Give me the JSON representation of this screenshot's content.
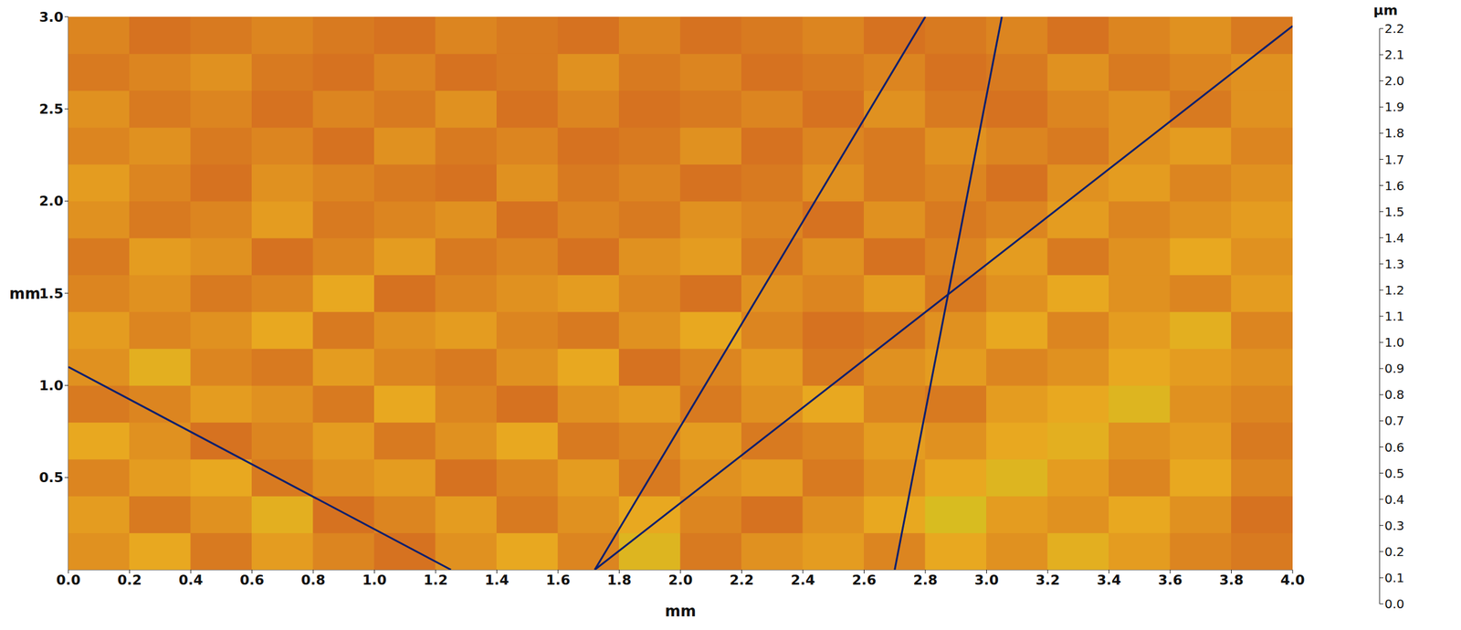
{
  "chart_data": {
    "type": "heatmap",
    "xlabel": "mm",
    "ylabel": "mm",
    "xlim": [
      0,
      4.0
    ],
    "xticks": [
      {
        "value": 0,
        "label": "0.0"
      },
      0.2,
      0.4,
      0.6,
      0.8,
      {
        "value": 1,
        "label": "1.0"
      },
      1.2,
      1.4,
      1.6,
      1.8,
      {
        "value": 2,
        "label": "2.0"
      },
      2.2,
      2.4,
      2.6,
      2.8,
      {
        "value": 3,
        "label": "3.0"
      },
      3.2,
      3.4,
      3.6,
      3.8,
      {
        "value": 4,
        "label": "4.0"
      }
    ],
    "ylim": [
      0,
      3.0
    ],
    "yticks": [
      0.5,
      {
        "value": 1,
        "label": "1.0"
      },
      1.5,
      {
        "value": 2,
        "label": "2.0"
      },
      2.5,
      {
        "value": 3,
        "label": "3.0"
      }
    ],
    "cells": {
      "x": [
        0.1,
        0.3,
        0.5,
        0.7,
        0.9,
        1.1,
        1.3,
        1.5,
        1.7,
        1.9,
        2.1,
        2.3,
        2.5,
        2.7,
        2.9,
        3.1,
        3.3,
        3.5,
        3.7,
        3.9
      ],
      "y": [
        0.1,
        0.3,
        0.5,
        0.7,
        0.9,
        1.1,
        1.3,
        1.5,
        1.7,
        1.9,
        2.1,
        2.3,
        2.5,
        2.7,
        2.9
      ],
      "values": [
        [
          1.78,
          1.76,
          1.8,
          1.77,
          1.79,
          1.81,
          1.78,
          1.76,
          1.79,
          1.74,
          1.8,
          1.78,
          1.77,
          1.79,
          1.76,
          1.78,
          1.75,
          1.77,
          1.79,
          1.8
        ],
        [
          1.77,
          1.8,
          1.78,
          1.75,
          1.81,
          1.79,
          1.77,
          1.8,
          1.78,
          1.76,
          1.79,
          1.81,
          1.78,
          1.76,
          1.73,
          1.77,
          1.78,
          1.76,
          1.78,
          1.81
        ],
        [
          1.79,
          1.77,
          1.76,
          1.8,
          1.78,
          1.77,
          1.81,
          1.79,
          1.77,
          1.8,
          1.78,
          1.77,
          1.8,
          1.78,
          1.76,
          1.74,
          1.77,
          1.79,
          1.76,
          1.79
        ],
        [
          1.76,
          1.78,
          1.81,
          1.79,
          1.77,
          1.8,
          1.78,
          1.76,
          1.8,
          1.79,
          1.77,
          1.8,
          1.79,
          1.77,
          1.78,
          1.76,
          1.75,
          1.78,
          1.77,
          1.8
        ],
        [
          1.8,
          1.79,
          1.77,
          1.78,
          1.8,
          1.76,
          1.79,
          1.81,
          1.78,
          1.77,
          1.8,
          1.78,
          1.76,
          1.79,
          1.8,
          1.77,
          1.76,
          1.74,
          1.78,
          1.79
        ],
        [
          1.78,
          1.75,
          1.79,
          1.8,
          1.77,
          1.79,
          1.8,
          1.78,
          1.76,
          1.81,
          1.79,
          1.77,
          1.8,
          1.78,
          1.77,
          1.79,
          1.78,
          1.76,
          1.77,
          1.78
        ],
        [
          1.77,
          1.79,
          1.78,
          1.76,
          1.8,
          1.78,
          1.77,
          1.79,
          1.8,
          1.78,
          1.76,
          1.79,
          1.81,
          1.8,
          1.78,
          1.76,
          1.79,
          1.77,
          1.75,
          1.79
        ],
        [
          1.79,
          1.78,
          1.8,
          1.79,
          1.76,
          1.81,
          1.79,
          1.78,
          1.77,
          1.79,
          1.81,
          1.78,
          1.79,
          1.77,
          1.8,
          1.78,
          1.76,
          1.78,
          1.79,
          1.77
        ],
        [
          1.8,
          1.77,
          1.78,
          1.81,
          1.79,
          1.77,
          1.8,
          1.79,
          1.81,
          1.78,
          1.77,
          1.8,
          1.78,
          1.81,
          1.79,
          1.77,
          1.8,
          1.78,
          1.76,
          1.78
        ],
        [
          1.78,
          1.8,
          1.79,
          1.77,
          1.8,
          1.79,
          1.78,
          1.81,
          1.79,
          1.8,
          1.78,
          1.79,
          1.81,
          1.78,
          1.8,
          1.79,
          1.77,
          1.79,
          1.78,
          1.77
        ],
        [
          1.77,
          1.79,
          1.81,
          1.78,
          1.79,
          1.8,
          1.81,
          1.78,
          1.8,
          1.79,
          1.81,
          1.8,
          1.78,
          1.8,
          1.79,
          1.81,
          1.78,
          1.77,
          1.79,
          1.78
        ],
        [
          1.79,
          1.78,
          1.8,
          1.79,
          1.81,
          1.78,
          1.8,
          1.79,
          1.81,
          1.8,
          1.78,
          1.81,
          1.79,
          1.8,
          1.78,
          1.79,
          1.8,
          1.78,
          1.77,
          1.79
        ],
        [
          1.78,
          1.8,
          1.79,
          1.81,
          1.79,
          1.8,
          1.78,
          1.81,
          1.79,
          1.81,
          1.8,
          1.79,
          1.81,
          1.78,
          1.8,
          1.81,
          1.79,
          1.78,
          1.8,
          1.78
        ],
        [
          1.8,
          1.79,
          1.78,
          1.8,
          1.81,
          1.79,
          1.81,
          1.8,
          1.78,
          1.8,
          1.79,
          1.81,
          1.8,
          1.79,
          1.81,
          1.8,
          1.78,
          1.8,
          1.79,
          1.78
        ],
        [
          1.79,
          1.81,
          1.8,
          1.79,
          1.8,
          1.81,
          1.79,
          1.8,
          1.81,
          1.79,
          1.81,
          1.8,
          1.79,
          1.81,
          1.8,
          1.79,
          1.81,
          1.79,
          1.78,
          1.8
        ]
      ]
    },
    "scratches": {
      "color": "#0b1f6e",
      "lines": [
        {
          "x": [
            1.72,
            2.8
          ],
          "y": [
            0,
            3.0
          ]
        },
        {
          "x": [
            1.72,
            4.0
          ],
          "y": [
            0,
            2.95
          ]
        },
        {
          "x": [
            0,
            1.25
          ],
          "y": [
            1.1,
            0
          ]
        },
        {
          "x": [
            2.7,
            3.05
          ],
          "y": [
            0,
            3.0
          ]
        }
      ]
    },
    "colorbar": {
      "label": "µm",
      "range": [
        0,
        2.2
      ],
      "ticks": [
        {
          "value": 0,
          "label": "0.0"
        },
        0.1,
        0.2,
        0.3,
        0.4,
        0.5,
        0.6,
        0.7,
        0.8,
        0.9,
        {
          "value": 1,
          "label": "1.0"
        },
        1.1,
        1.2,
        1.3,
        1.4,
        1.5,
        1.6,
        1.7,
        1.8,
        1.9,
        {
          "value": 2,
          "label": "2.0"
        },
        2.1,
        2.2
      ]
    }
  }
}
